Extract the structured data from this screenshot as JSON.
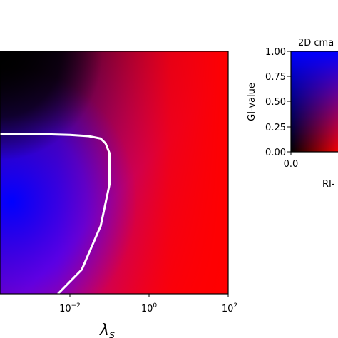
{
  "chart_data": [
    {
      "type": "heatmap",
      "xlabel": "λ",
      "xlabel_subscript": "s",
      "x_scale": "log",
      "x_ticks": [
        {
          "value": 0.01,
          "base": "10",
          "exponent": "−2"
        },
        {
          "value": 1,
          "base": "10",
          "exponent": "0"
        },
        {
          "value": 100,
          "base": "10",
          "exponent": "2"
        }
      ],
      "colors": {
        "low": "#000000",
        "ri": "#ff0000",
        "gi": "#0000ff",
        "contour": "#ffffff"
      },
      "contour": {
        "x": [
          0.0001,
          0.001,
          0.01,
          0.03,
          0.06,
          0.08,
          0.1,
          0.1,
          0.06,
          0.02,
          0.005
        ],
        "y": [
          0.66,
          0.66,
          0.655,
          0.65,
          0.64,
          0.62,
          0.58,
          0.45,
          0.28,
          0.1,
          0.0
        ]
      }
    },
    {
      "type": "heatmap",
      "title": "2D cma",
      "xlabel": "RI-",
      "ylabel": "GI-value",
      "y_ticks": [
        "1.00",
        "0.75",
        "0.50",
        "0.25",
        "0.00"
      ],
      "x_ticks": [
        "0.0"
      ],
      "ylim": [
        0,
        1
      ],
      "xlim": [
        0,
        1
      ]
    }
  ]
}
